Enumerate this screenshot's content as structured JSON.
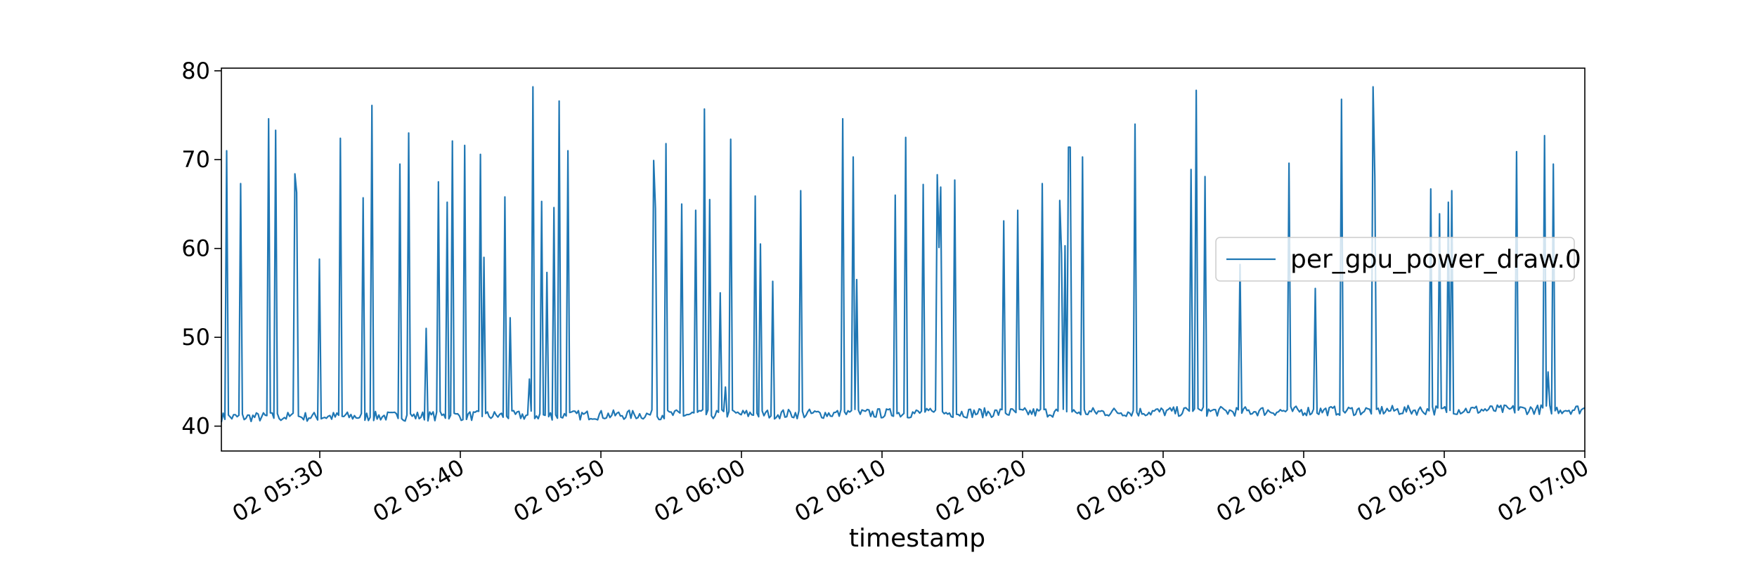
{
  "chart_data": {
    "type": "line",
    "title": "",
    "xlabel": "timestamp",
    "ylabel": "",
    "x_start": "02 05:23",
    "x_end": "02 07:00",
    "xlim": [
      "02 05:23",
      "02 07:00"
    ],
    "ylim": [
      37.2,
      80.3
    ],
    "yticks": [
      40,
      50,
      60,
      70,
      80
    ],
    "xticks": [
      "02 05:30",
      "02 05:40",
      "02 05:50",
      "02 06:00",
      "02 06:10",
      "02 06:20",
      "02 06:30",
      "02 06:40",
      "02 06:50",
      "02 07:00"
    ],
    "legend_position": "center-right",
    "grid": false,
    "baseline": 41,
    "sample_count": 780,
    "series": [
      {
        "name": "per_gpu_power_draw.0",
        "color": "#1f77b4",
        "x": [
          "02 05:23:00",
          "02 05:24:00",
          "02 05:25:00",
          "02 05:26:00",
          "02 05:27:00",
          "02 05:28:00",
          "02 05:29:00",
          "02 05:30:00",
          "02 05:31:00",
          "02 05:32:00",
          "02 05:33:00",
          "02 05:34:00",
          "02 05:35:00",
          "02 05:36:00",
          "02 05:37:00",
          "02 05:38:00",
          "02 05:39:00",
          "02 05:40:00",
          "02 05:41:00",
          "02 05:42:00",
          "02 05:43:00",
          "02 05:44:00",
          "02 05:45:00",
          "02 05:46:00",
          "02 05:47:00",
          "02 05:48:00",
          "02 05:49:00",
          "02 05:50:00",
          "02 05:51:00",
          "02 05:52:00",
          "02 05:53:00",
          "02 05:54:00",
          "02 05:55:00",
          "02 05:56:00",
          "02 05:57:00",
          "02 05:58:00",
          "02 05:59:00",
          "02 06:00:00",
          "02 06:01:00",
          "02 06:02:00",
          "02 06:03:00",
          "02 06:04:00",
          "02 06:05:00",
          "02 06:06:00",
          "02 06:07:00",
          "02 06:08:00",
          "02 06:09:00",
          "02 06:10:00",
          "02 06:11:00",
          "02 06:12:00",
          "02 06:13:00",
          "02 06:14:00",
          "02 06:15:00",
          "02 06:16:00",
          "02 06:17:00",
          "02 06:18:00",
          "02 06:19:00",
          "02 06:20:00",
          "02 06:21:00",
          "02 06:22:00",
          "02 06:23:00",
          "02 06:24:00",
          "02 06:25:00",
          "02 06:26:00",
          "02 06:27:00",
          "02 06:28:00",
          "02 06:29:00",
          "02 06:30:00",
          "02 06:31:00",
          "02 06:32:00",
          "02 06:33:00",
          "02 06:34:00",
          "02 06:35:00",
          "02 06:36:00",
          "02 06:37:00",
          "02 06:38:00",
          "02 06:39:00",
          "02 06:40:00",
          "02 06:41:00",
          "02 06:42:00",
          "02 06:43:00",
          "02 06:44:00",
          "02 06:45:00",
          "02 06:46:00",
          "02 06:47:00",
          "02 06:48:00",
          "02 06:49:00",
          "02 06:50:00",
          "02 06:51:00",
          "02 06:52:00",
          "02 06:53:00",
          "02 06:54:00",
          "02 06:55:00",
          "02 06:56:00",
          "02 06:57:00",
          "02 06:58:00",
          "02 06:59:00",
          "02 07:00:00"
        ],
        "spikes": [
          [
            0.4,
            71.0
          ],
          [
            1.4,
            67.3
          ],
          [
            3.4,
            74.6
          ],
          [
            3.9,
            73.3
          ],
          [
            5.2,
            68.4
          ],
          [
            5.3,
            66.3
          ],
          [
            7.0,
            58.8
          ],
          [
            8.5,
            72.4
          ],
          [
            10.1,
            65.7
          ],
          [
            10.7,
            76.1
          ],
          [
            12.7,
            69.5
          ],
          [
            13.3,
            73.0
          ],
          [
            14.6,
            51.0
          ],
          [
            15.5,
            67.5
          ],
          [
            16.1,
            65.2
          ],
          [
            16.4,
            72.1
          ],
          [
            17.3,
            71.6
          ],
          [
            18.4,
            70.6
          ],
          [
            18.7,
            59.0
          ],
          [
            20.2,
            65.8
          ],
          [
            20.6,
            52.2
          ],
          [
            21.9,
            45.3
          ],
          [
            22.2,
            78.2
          ],
          [
            22.8,
            65.3
          ],
          [
            23.2,
            57.3
          ],
          [
            23.7,
            64.6
          ],
          [
            24.0,
            76.6
          ],
          [
            24.6,
            71.0
          ],
          [
            30.8,
            69.9
          ],
          [
            30.9,
            64.5
          ],
          [
            31.6,
            71.8
          ],
          [
            32.8,
            65.0
          ],
          [
            33.8,
            64.3
          ],
          [
            34.4,
            75.7
          ],
          [
            34.8,
            65.5
          ],
          [
            35.5,
            55.0
          ],
          [
            35.8,
            44.4
          ],
          [
            36.2,
            72.3
          ],
          [
            38.0,
            65.9
          ],
          [
            38.3,
            60.5
          ],
          [
            39.2,
            56.3
          ],
          [
            41.2,
            66.5
          ],
          [
            44.2,
            74.6
          ],
          [
            45.0,
            70.3
          ],
          [
            45.2,
            56.5
          ],
          [
            48.0,
            66.0
          ],
          [
            48.7,
            72.5
          ],
          [
            49.9,
            67.2
          ],
          [
            50.9,
            68.3
          ],
          [
            51.1,
            60.1
          ],
          [
            51.2,
            66.9
          ],
          [
            52.2,
            67.7
          ],
          [
            55.6,
            63.1
          ],
          [
            56.6,
            64.3
          ],
          [
            58.4,
            67.3
          ],
          [
            59.7,
            65.4
          ],
          [
            59.8,
            59.4
          ],
          [
            60.0,
            60.3
          ],
          [
            60.3,
            71.4
          ],
          [
            60.4,
            71.4
          ],
          [
            61.3,
            70.3
          ],
          [
            65.0,
            74.0
          ],
          [
            69.0,
            68.9
          ],
          [
            69.4,
            77.8
          ],
          [
            70.0,
            68.1
          ],
          [
            72.5,
            58.2
          ],
          [
            75.9,
            69.6
          ],
          [
            77.8,
            55.5
          ],
          [
            79.7,
            76.8
          ],
          [
            81.9,
            78.2
          ],
          [
            82.1,
            68.1
          ],
          [
            86.0,
            66.7
          ],
          [
            86.7,
            63.9
          ],
          [
            87.3,
            65.2
          ],
          [
            87.5,
            66.5
          ],
          [
            92.2,
            70.9
          ],
          [
            94.1,
            72.7
          ],
          [
            94.4,
            46.1
          ],
          [
            94.7,
            69.5
          ]
        ]
      }
    ]
  }
}
